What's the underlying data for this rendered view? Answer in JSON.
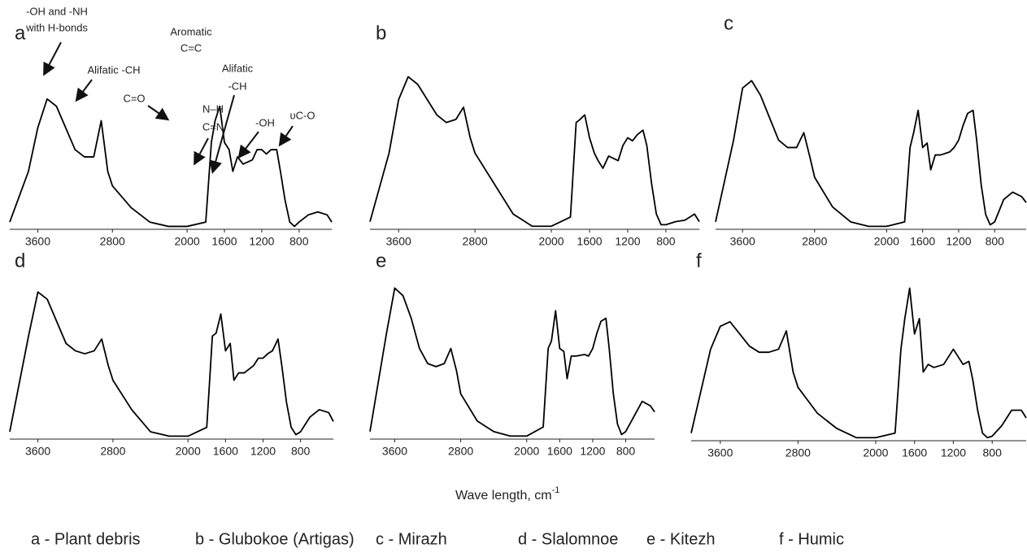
{
  "chart_data": [
    {
      "type": "line",
      "label": "a",
      "xlim": [
        3900,
        450
      ],
      "ylim": [
        0,
        105
      ],
      "xticks": [
        3600,
        2800,
        2000,
        1600,
        1200,
        800
      ],
      "color": "#000000",
      "x": [
        3900,
        3700,
        3600,
        3500,
        3400,
        3300,
        3200,
        3100,
        3000,
        2920,
        2850,
        2800,
        2600,
        2400,
        2200,
        2000,
        1800,
        1740,
        1700,
        1650,
        1600,
        1550,
        1510,
        1460,
        1400,
        1300,
        1250,
        1200,
        1150,
        1100,
        1040,
        1000,
        950,
        900,
        850,
        800,
        700,
        600,
        500,
        450
      ],
      "values": [
        5,
        40,
        70,
        90,
        85,
        70,
        55,
        50,
        50,
        75,
        40,
        30,
        15,
        5,
        2,
        2,
        5,
        60,
        75,
        85,
        60,
        55,
        40,
        50,
        45,
        48,
        55,
        55,
        52,
        55,
        55,
        40,
        20,
        5,
        2,
        5,
        10,
        12,
        10,
        5
      ],
      "annotations": [
        {
          "text": [
            "-OH and -NH",
            "with H-bonds"
          ]
        },
        {
          "text": [
            "Alifatic -CH"
          ]
        },
        {
          "text": [
            "Aromatic",
            "C=C"
          ]
        },
        {
          "text": [
            "C=O"
          ]
        },
        {
          "text": [
            "N–H",
            "C=N"
          ]
        },
        {
          "text": [
            "Alifatic",
            "-CH"
          ]
        },
        {
          "text": [
            "-OH"
          ]
        },
        {
          "text": [
            "υC-O"
          ]
        }
      ]
    },
    {
      "type": "line",
      "label": "b",
      "xlim": [
        3900,
        450
      ],
      "ylim": [
        0,
        105
      ],
      "xticks": [
        3600,
        2800,
        2000,
        1600,
        1200,
        800
      ],
      "color": "#000000",
      "x": [
        3900,
        3700,
        3600,
        3500,
        3400,
        3300,
        3200,
        3100,
        3000,
        2920,
        2850,
        2800,
        2600,
        2400,
        2200,
        2000,
        1800,
        1740,
        1700,
        1650,
        1600,
        1550,
        1510,
        1460,
        1400,
        1300,
        1250,
        1200,
        1150,
        1100,
        1040,
        1000,
        950,
        900,
        850,
        800,
        700,
        600,
        500,
        450
      ],
      "values": [
        5,
        50,
        85,
        100,
        95,
        85,
        75,
        70,
        72,
        80,
        60,
        50,
        30,
        10,
        2,
        2,
        8,
        70,
        72,
        75,
        60,
        50,
        45,
        40,
        48,
        45,
        55,
        60,
        58,
        62,
        65,
        55,
        30,
        10,
        3,
        3,
        5,
        6,
        10,
        5
      ]
    },
    {
      "type": "line",
      "label": "c",
      "xlim": [
        3900,
        450
      ],
      "ylim": [
        0,
        105
      ],
      "xticks": [
        3600,
        2800,
        2000,
        1600,
        1200,
        800
      ],
      "color": "#000000",
      "x": [
        3900,
        3700,
        3600,
        3500,
        3400,
        3300,
        3200,
        3100,
        3000,
        2920,
        2850,
        2800,
        2600,
        2400,
        2200,
        2000,
        1800,
        1740,
        1700,
        1650,
        1600,
        1550,
        1510,
        1460,
        1400,
        1300,
        1250,
        1200,
        1150,
        1100,
        1040,
        1000,
        950,
        900,
        850,
        800,
        700,
        600,
        500,
        450
      ],
      "values": [
        5,
        60,
        95,
        100,
        90,
        75,
        60,
        55,
        55,
        65,
        48,
        35,
        15,
        5,
        2,
        2,
        5,
        55,
        65,
        80,
        55,
        58,
        40,
        50,
        50,
        52,
        55,
        60,
        70,
        78,
        80,
        60,
        30,
        10,
        3,
        5,
        20,
        25,
        22,
        18
      ]
    },
    {
      "type": "line",
      "label": "d",
      "xlim": [
        3900,
        450
      ],
      "ylim": [
        0,
        105
      ],
      "xticks": [
        3600,
        2800,
        2000,
        1600,
        1200,
        800
      ],
      "color": "#000000",
      "x": [
        3900,
        3700,
        3600,
        3500,
        3400,
        3300,
        3200,
        3100,
        3000,
        2920,
        2850,
        2800,
        2600,
        2400,
        2200,
        2000,
        1800,
        1740,
        1700,
        1650,
        1600,
        1550,
        1510,
        1460,
        1400,
        1300,
        1250,
        1200,
        1150,
        1100,
        1040,
        1000,
        950,
        900,
        850,
        800,
        700,
        600,
        500,
        450
      ],
      "values": [
        5,
        70,
        100,
        95,
        80,
        65,
        60,
        58,
        60,
        68,
        50,
        40,
        20,
        5,
        2,
        2,
        8,
        70,
        72,
        85,
        60,
        65,
        40,
        45,
        45,
        50,
        55,
        55,
        58,
        60,
        68,
        50,
        25,
        8,
        3,
        5,
        15,
        20,
        18,
        12
      ]
    },
    {
      "type": "line",
      "label": "e",
      "xlim": [
        3900,
        450
      ],
      "ylim": [
        0,
        105
      ],
      "xticks": [
        3600,
        2800,
        2000,
        1600,
        1200,
        800
      ],
      "color": "#000000",
      "x": [
        3900,
        3700,
        3600,
        3500,
        3400,
        3300,
        3200,
        3100,
        3000,
        2920,
        2850,
        2800,
        2600,
        2400,
        2200,
        2000,
        1800,
        1740,
        1700,
        1650,
        1600,
        1550,
        1510,
        1460,
        1400,
        1300,
        1250,
        1200,
        1150,
        1100,
        1040,
        1000,
        950,
        900,
        850,
        800,
        700,
        600,
        500,
        450
      ],
      "values": [
        5,
        70,
        100,
        95,
        80,
        60,
        50,
        48,
        50,
        60,
        45,
        30,
        12,
        5,
        2,
        2,
        8,
        60,
        65,
        85,
        60,
        58,
        40,
        55,
        55,
        56,
        55,
        60,
        70,
        78,
        80,
        60,
        30,
        10,
        3,
        5,
        15,
        25,
        22,
        18
      ]
    },
    {
      "type": "line",
      "label": "f",
      "xlim": [
        3900,
        450
      ],
      "ylim": [
        0,
        105
      ],
      "xticks": [
        3600,
        2800,
        2000,
        1600,
        1200,
        800
      ],
      "color": "#000000",
      "x": [
        3900,
        3700,
        3600,
        3500,
        3400,
        3300,
        3200,
        3100,
        3000,
        2920,
        2850,
        2800,
        2600,
        2400,
        2200,
        2000,
        1800,
        1740,
        1700,
        1650,
        1600,
        1550,
        1510,
        1460,
        1400,
        1300,
        1250,
        1200,
        1150,
        1100,
        1040,
        1000,
        950,
        900,
        850,
        800,
        700,
        600,
        500,
        450
      ],
      "values": [
        5,
        60,
        75,
        78,
        70,
        62,
        58,
        58,
        60,
        72,
        45,
        35,
        18,
        8,
        2,
        2,
        5,
        60,
        80,
        100,
        70,
        80,
        45,
        50,
        48,
        50,
        55,
        60,
        55,
        50,
        52,
        40,
        20,
        5,
        2,
        3,
        10,
        20,
        20,
        15
      ]
    }
  ],
  "xlabel": "Wave length, cm",
  "xlabel_sup": "-1",
  "legend": [
    "a - Plant debris",
    "b - Glubokoe (Artigas)",
    "c - Mirazh",
    "d - Slalomnoe",
    "e - Kitezh",
    "f - Humic"
  ]
}
